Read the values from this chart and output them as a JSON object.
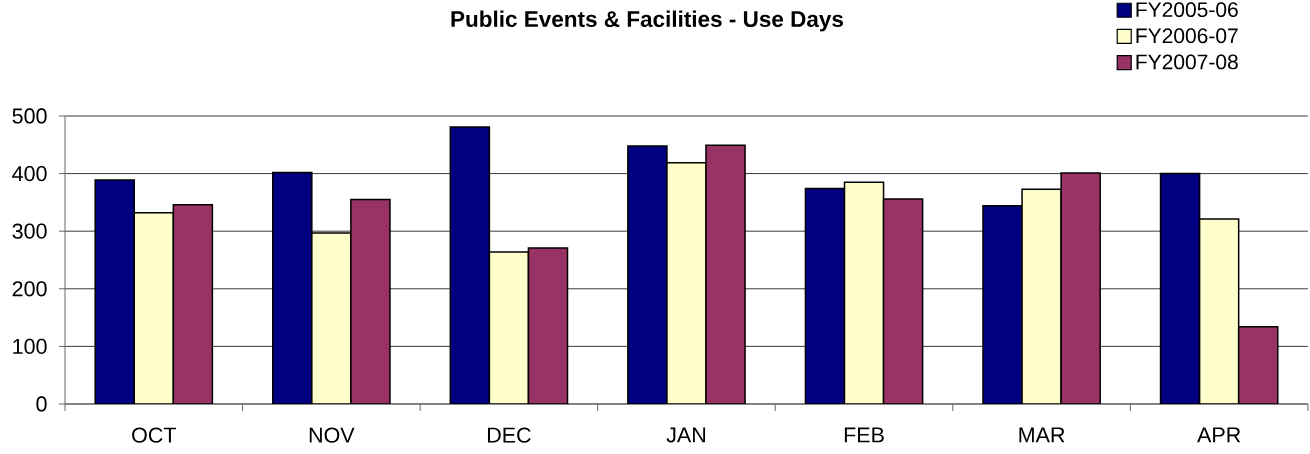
{
  "chart_data": {
    "type": "bar",
    "title": "Public Events & Facilities - Use Days",
    "categories": [
      "OCT",
      "NOV",
      "DEC",
      "JAN",
      "FEB",
      "MAR",
      "APR"
    ],
    "series": [
      {
        "name": "FY2005-06",
        "color": "#000080",
        "values": [
          389,
          402,
          481,
          448,
          374,
          344,
          400
        ]
      },
      {
        "name": "FY2006-07",
        "color": "#ffffcc",
        "values": [
          332,
          297,
          264,
          419,
          385,
          373,
          321
        ]
      },
      {
        "name": "FY2007-08",
        "color": "#993366",
        "values": [
          346,
          355,
          271,
          449,
          356,
          401,
          134
        ]
      }
    ],
    "ylim": [
      0,
      500
    ],
    "yticks": [
      0,
      100,
      200,
      300,
      400,
      500
    ],
    "grid": "y",
    "legend": "top right"
  }
}
